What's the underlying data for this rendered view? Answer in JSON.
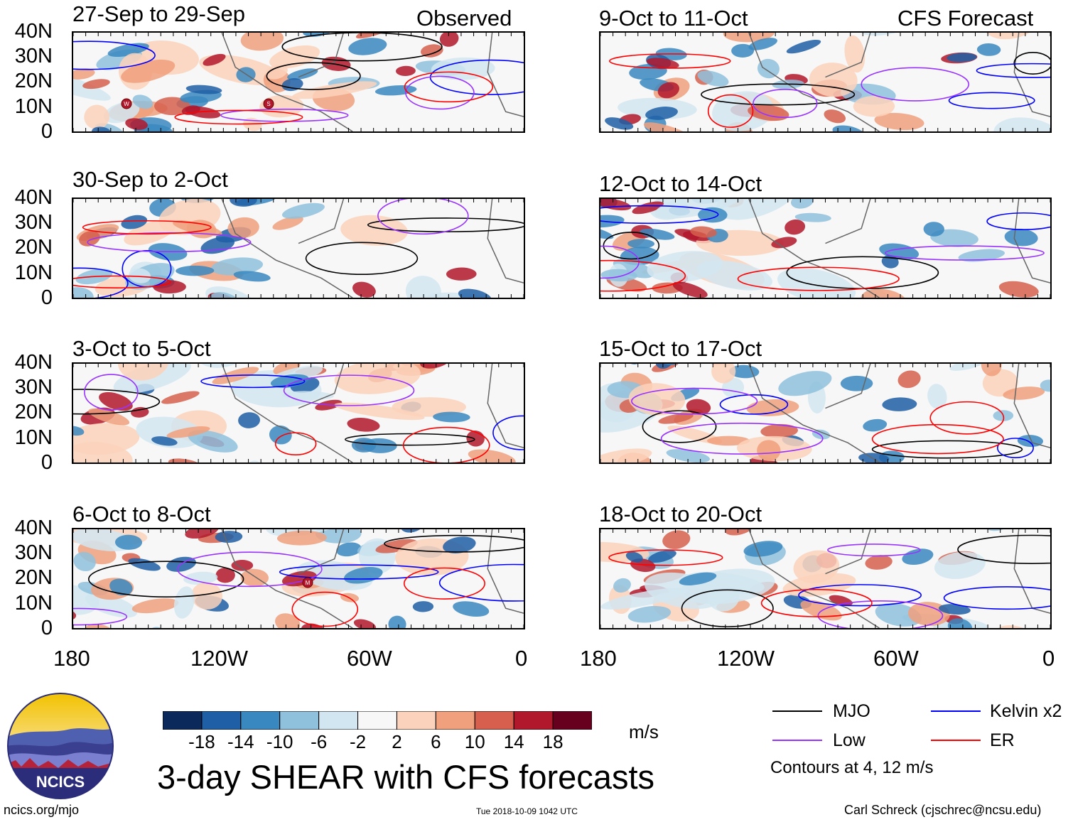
{
  "header": {
    "left_label": "Observed",
    "right_label": "CFS Forecast"
  },
  "panels_left": [
    {
      "title": "27-Sep to 29-Sep",
      "storms": [
        "W",
        "S"
      ]
    },
    {
      "title": "30-Sep to 2-Oct",
      "storms": []
    },
    {
      "title": "3-Oct to 5-Oct",
      "storms": []
    },
    {
      "title": "6-Oct to 8-Oct",
      "storms": [
        "M"
      ]
    }
  ],
  "panels_right": [
    {
      "title": "9-Oct to 11-Oct"
    },
    {
      "title": "12-Oct to 14-Oct"
    },
    {
      "title": "15-Oct to 17-Oct"
    },
    {
      "title": "18-Oct to 20-Oct"
    }
  ],
  "lat_labels": [
    "40N",
    "30N",
    "20N",
    "10N",
    "0"
  ],
  "lon_labels": [
    "180",
    "120W",
    "60W",
    "0"
  ],
  "chart_data": {
    "type": "heatmap",
    "title": "3-day SHEAR with CFS forecasts",
    "variable": "SHEAR",
    "units": "m/s",
    "xlim": [
      -180,
      0
    ],
    "ylim": [
      0,
      40
    ],
    "colorbar": {
      "ticks": [
        "-18",
        "-14",
        "-10",
        "-6",
        "-2",
        "2",
        "6",
        "10",
        "14",
        "18"
      ],
      "colors": [
        "#0b2a5b",
        "#1f5fa6",
        "#3a88c0",
        "#8fc1dd",
        "#d2e6f1",
        "#f7f7f7",
        "#fbd2bb",
        "#f0a07d",
        "#d6604d",
        "#b2182b",
        "#67001f"
      ]
    },
    "legend": [
      {
        "name": "MJO",
        "color": "#000000"
      },
      {
        "name": "Kelvin x2",
        "color": "#0000ff"
      },
      {
        "name": "Low",
        "color": "#9933ff"
      },
      {
        "name": "ER",
        "color": "#ff0000"
      }
    ],
    "contour_note": "Contours at 4, 12 m/s"
  },
  "footer": {
    "logo_text": "NCICS",
    "url": "ncics.org/mjo",
    "timestamp": "Tue 2018-10-09 1042 UTC",
    "author": "Carl Schreck (cjschrec@ncsu.edu)"
  }
}
